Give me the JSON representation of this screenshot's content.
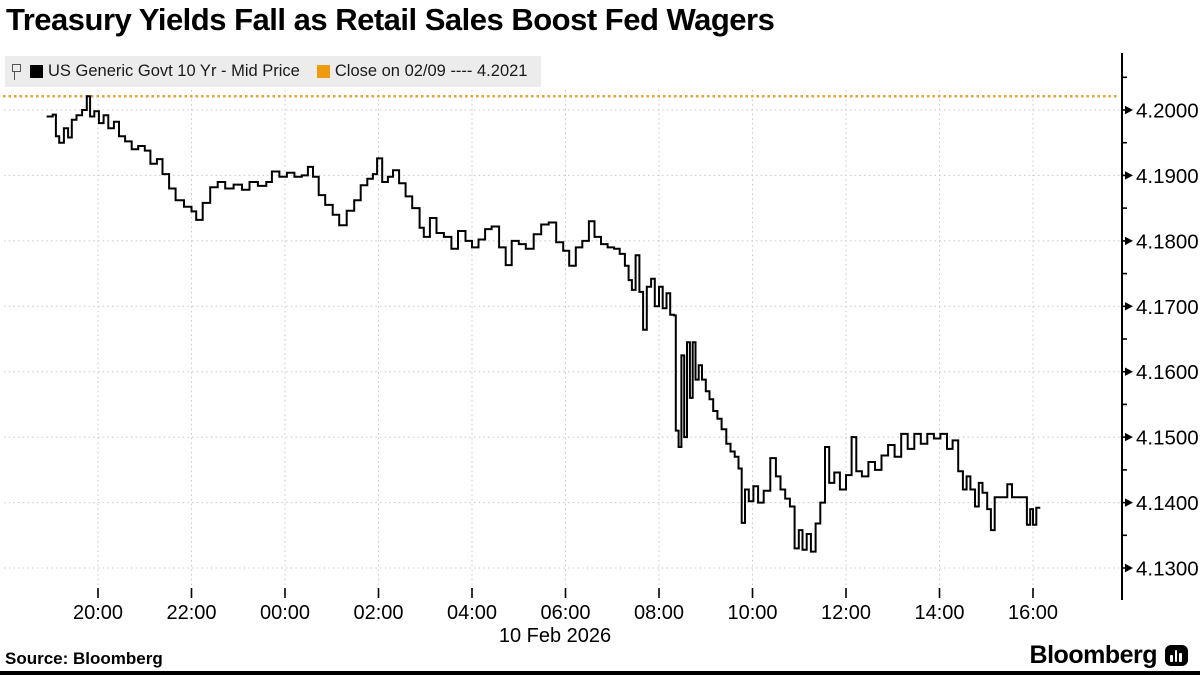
{
  "title": "Treasury Yields Fall as Retail Sales Boost Fed Wagers",
  "legend": {
    "series1": {
      "label": "US Generic Govt 10 Yr - Mid Price",
      "swatch_color": "#000000"
    },
    "series2": {
      "label": "Close on 02/09 ---- 4.2021",
      "swatch_color": "#F09A10"
    }
  },
  "footer": {
    "source": "Source: Bloomberg",
    "brand": "Bloomberg"
  },
  "chart_data": {
    "type": "line",
    "step": true,
    "title": "Treasury Yields Fall as Retail Sales Boost Fed Wagers",
    "series_name": "US Generic Govt 10 Yr - Mid Price",
    "line_color": "#000000",
    "grid_color": "#c7c7c7",
    "close_line": {
      "label": "Close on 02/09",
      "value": 4.2021,
      "color": "#E2A33E"
    },
    "x_axis": {
      "label": "10 Feb 2026",
      "note": "t = hours relative to midnight, negative values are evening of 09 Feb",
      "range": [
        -5.15,
        16.2
      ],
      "ticks": [
        {
          "t": -4,
          "label": "20:00"
        },
        {
          "t": -2,
          "label": "22:00"
        },
        {
          "t": 0,
          "label": "00:00"
        },
        {
          "t": 2,
          "label": "02:00"
        },
        {
          "t": 4,
          "label": "04:00"
        },
        {
          "t": 6,
          "label": "06:00"
        },
        {
          "t": 8,
          "label": "08:00"
        },
        {
          "t": 10,
          "label": "10:00"
        },
        {
          "t": 12,
          "label": "12:00"
        },
        {
          "t": 14,
          "label": "14:00"
        },
        {
          "t": 16,
          "label": "16:00"
        }
      ]
    },
    "y_axis": {
      "range": [
        4.125,
        4.2085
      ],
      "major": [
        {
          "value": 4.2,
          "label": "4.2000"
        },
        {
          "value": 4.19,
          "label": "4.1900"
        },
        {
          "value": 4.18,
          "label": "4.1800"
        },
        {
          "value": 4.17,
          "label": "4.1700"
        },
        {
          "value": 4.16,
          "label": "4.1600"
        },
        {
          "value": 4.15,
          "label": "4.1500"
        },
        {
          "value": 4.14,
          "label": "4.1400"
        },
        {
          "value": 4.13,
          "label": "4.1300"
        }
      ],
      "minor": [
        4.205,
        4.195,
        4.185,
        4.175,
        4.165,
        4.155,
        4.145,
        4.135
      ]
    },
    "points": [
      [
        -5.1,
        4.199
      ],
      [
        -4.97,
        4.1993
      ],
      [
        -4.9,
        4.196
      ],
      [
        -4.83,
        4.195
      ],
      [
        -4.73,
        4.1972
      ],
      [
        -4.64,
        4.1958
      ],
      [
        -4.56,
        4.1985
      ],
      [
        -4.46,
        4.1992
      ],
      [
        -4.34,
        4.2
      ],
      [
        -4.24,
        4.2021
      ],
      [
        -4.17,
        4.199
      ],
      [
        -4.08,
        4.1998
      ],
      [
        -3.98,
        4.198
      ],
      [
        -3.88,
        4.1992
      ],
      [
        -3.78,
        4.1972
      ],
      [
        -3.66,
        4.1982
      ],
      [
        -3.55,
        4.196
      ],
      [
        -3.42,
        4.1952
      ],
      [
        -3.28,
        4.194
      ],
      [
        -3.14,
        4.1945
      ],
      [
        -3.0,
        4.1938
      ],
      [
        -2.88,
        4.1918
      ],
      [
        -2.74,
        4.1925
      ],
      [
        -2.62,
        4.1902
      ],
      [
        -2.48,
        4.188
      ],
      [
        -2.34,
        4.1862
      ],
      [
        -2.16,
        4.1852
      ],
      [
        -2.0,
        4.1845
      ],
      [
        -1.9,
        4.1832
      ],
      [
        -1.76,
        4.1858
      ],
      [
        -1.6,
        4.1882
      ],
      [
        -1.44,
        4.189
      ],
      [
        -1.28,
        4.188
      ],
      [
        -1.1,
        4.1886
      ],
      [
        -0.92,
        4.1878
      ],
      [
        -0.76,
        4.189
      ],
      [
        -0.58,
        4.1884
      ],
      [
        -0.4,
        4.189
      ],
      [
        -0.28,
        4.1906
      ],
      [
        -0.12,
        4.1898
      ],
      [
        0.04,
        4.1904
      ],
      [
        0.2,
        4.1898
      ],
      [
        0.36,
        4.19
      ],
      [
        0.49,
        4.1913
      ],
      [
        0.6,
        4.1898
      ],
      [
        0.72,
        4.187
      ],
      [
        0.86,
        4.1855
      ],
      [
        1.02,
        4.184
      ],
      [
        1.16,
        4.1824
      ],
      [
        1.32,
        4.1846
      ],
      [
        1.48,
        4.1862
      ],
      [
        1.62,
        4.1885
      ],
      [
        1.76,
        4.1895
      ],
      [
        1.88,
        4.1902
      ],
      [
        1.97,
        4.1926
      ],
      [
        2.08,
        4.189
      ],
      [
        2.2,
        4.1898
      ],
      [
        2.31,
        4.1908
      ],
      [
        2.44,
        4.1888
      ],
      [
        2.58,
        4.1868
      ],
      [
        2.72,
        4.185
      ],
      [
        2.88,
        4.182
      ],
      [
        2.97,
        4.1806
      ],
      [
        3.1,
        4.1835
      ],
      [
        3.24,
        4.1812
      ],
      [
        3.4,
        4.1806
      ],
      [
        3.56,
        4.1788
      ],
      [
        3.7,
        4.1815
      ],
      [
        3.86,
        4.18
      ],
      [
        4.0,
        4.179
      ],
      [
        4.14,
        4.1802
      ],
      [
        4.28,
        4.1818
      ],
      [
        4.42,
        4.1822
      ],
      [
        4.58,
        4.179
      ],
      [
        4.72,
        4.1763
      ],
      [
        4.85,
        4.18
      ],
      [
        5.0,
        4.1795
      ],
      [
        5.15,
        4.1788
      ],
      [
        5.32,
        4.181
      ],
      [
        5.48,
        4.1825
      ],
      [
        5.64,
        4.1828
      ],
      [
        5.8,
        4.1798
      ],
      [
        5.95,
        4.1785
      ],
      [
        6.08,
        4.1762
      ],
      [
        6.22,
        4.179
      ],
      [
        6.36,
        4.18
      ],
      [
        6.5,
        4.183
      ],
      [
        6.62,
        4.1806
      ],
      [
        6.76,
        4.1795
      ],
      [
        6.9,
        4.179
      ],
      [
        7.04,
        4.1788
      ],
      [
        7.16,
        4.178
      ],
      [
        7.27,
        4.1762
      ],
      [
        7.35,
        4.174
      ],
      [
        7.42,
        4.1725
      ],
      [
        7.5,
        4.1778
      ],
      [
        7.58,
        4.1722
      ],
      [
        7.66,
        4.1664
      ],
      [
        7.74,
        4.173
      ],
      [
        7.83,
        4.1742
      ],
      [
        7.91,
        4.17
      ],
      [
        8.0,
        4.173
      ],
      [
        8.08,
        4.1697
      ],
      [
        8.16,
        4.172
      ],
      [
        8.24,
        4.1687
      ],
      [
        8.32,
        4.1686
      ],
      [
        8.36,
        4.151
      ],
      [
        8.42,
        4.1485
      ],
      [
        8.48,
        4.1625
      ],
      [
        8.54,
        4.15
      ],
      [
        8.6,
        4.1645
      ],
      [
        8.66,
        4.156
      ],
      [
        8.72,
        4.1645
      ],
      [
        8.78,
        4.1588
      ],
      [
        8.85,
        4.161
      ],
      [
        8.92,
        4.1588
      ],
      [
        9.0,
        4.157
      ],
      [
        9.08,
        4.1558
      ],
      [
        9.16,
        4.154
      ],
      [
        9.25,
        4.1528
      ],
      [
        9.34,
        4.1512
      ],
      [
        9.44,
        4.149
      ],
      [
        9.53,
        4.1478
      ],
      [
        9.62,
        4.147
      ],
      [
        9.7,
        4.1452
      ],
      [
        9.77,
        4.1369
      ],
      [
        9.84,
        4.142
      ],
      [
        9.92,
        4.1402
      ],
      [
        10.02,
        4.1425
      ],
      [
        10.12,
        4.14
      ],
      [
        10.24,
        4.1418
      ],
      [
        10.38,
        4.1468
      ],
      [
        10.5,
        4.144
      ],
      [
        10.6,
        4.142
      ],
      [
        10.7,
        4.1406
      ],
      [
        10.8,
        4.1394
      ],
      [
        10.9,
        4.133
      ],
      [
        10.99,
        4.1358
      ],
      [
        11.07,
        4.1328
      ],
      [
        11.16,
        4.1352
      ],
      [
        11.25,
        4.1325
      ],
      [
        11.35,
        4.1368
      ],
      [
        11.45,
        4.14
      ],
      [
        11.55,
        4.1485
      ],
      [
        11.64,
        4.143
      ],
      [
        11.75,
        4.1446
      ],
      [
        11.87,
        4.142
      ],
      [
        12.0,
        4.1442
      ],
      [
        12.12,
        4.15
      ],
      [
        12.22,
        4.1448
      ],
      [
        12.34,
        4.144
      ],
      [
        12.48,
        4.1462
      ],
      [
        12.62,
        4.145
      ],
      [
        12.76,
        4.1472
      ],
      [
        12.9,
        4.1488
      ],
      [
        13.04,
        4.147
      ],
      [
        13.18,
        4.1505
      ],
      [
        13.32,
        4.1482
      ],
      [
        13.46,
        4.1505
      ],
      [
        13.6,
        4.149
      ],
      [
        13.74,
        4.1505
      ],
      [
        13.88,
        4.1498
      ],
      [
        14.02,
        4.1505
      ],
      [
        14.16,
        4.1482
      ],
      [
        14.28,
        4.1495
      ],
      [
        14.4,
        4.1448
      ],
      [
        14.5,
        4.142
      ],
      [
        14.58,
        4.144
      ],
      [
        14.66,
        4.142
      ],
      [
        14.76,
        4.1394
      ],
      [
        14.84,
        4.143
      ],
      [
        14.92,
        4.1415
      ],
      [
        15.02,
        4.139
      ],
      [
        15.1,
        4.1358
      ],
      [
        15.18,
        4.1408
      ],
      [
        15.45,
        4.1428
      ],
      [
        15.55,
        4.1408
      ],
      [
        15.8,
        4.1408
      ],
      [
        15.87,
        4.1366
      ],
      [
        15.94,
        4.139
      ],
      [
        16.0,
        4.1366
      ],
      [
        16.07,
        4.1392
      ]
    ]
  }
}
